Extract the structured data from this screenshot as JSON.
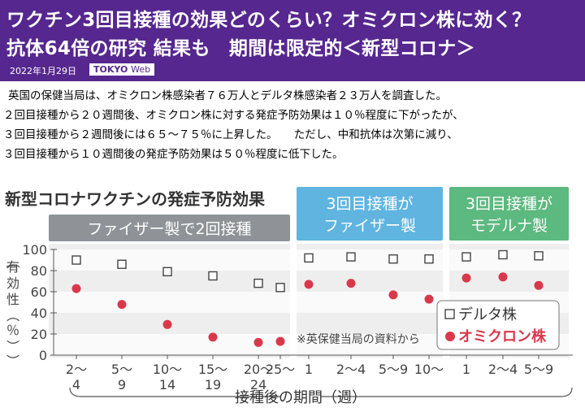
{
  "header": {
    "title_line1": "ワクチン3回目接種の効果どのくらい？オミクロン株に効く？",
    "title_line2": "抗体64倍の研究 結果も　期間は限定的＜新型コロナ＞",
    "date": "2022年1月29日",
    "brand": "TOKYO",
    "brand_suffix": "Web"
  },
  "article": {
    "lines": [
      "英国の保健当局は、オミクロン株感染者７６万人とデルタ株感染者２３万人を調査した。",
      "２回目接種から２０週間後、オミクロン株に対する発症予防効果は１０％程度に下がったが、",
      "３回目接種から２週間後には６５～７５％に上昇した。　　ただし、中和抗体は次第に減り、",
      "３回目接種から１０週間後の発症予防効果は５０％程度に低下した。"
    ]
  },
  "chart_data": {
    "type": "scatter",
    "title": "新型コロナワクチンの発症予防効果",
    "ylabel": "有効性（％）",
    "xlabel": "接種後の期間（週）",
    "ylim": [
      0,
      100
    ],
    "yticks": [
      0,
      20,
      40,
      60,
      80,
      100
    ],
    "source_note": "※英保健当局の資料から",
    "legend": {
      "delta": "デルタ株",
      "omicron": "オミクロン株",
      "placement": "bottom-right"
    },
    "colors": {
      "omicron": "#d9384b",
      "delta": "#444444",
      "panel1_header": "#8f9397",
      "panel2_header": "#5fb4e0",
      "panel3_header": "#5cb97f",
      "panel_bg": "#eeeeee",
      "axis_blue": "#3a7fc0"
    },
    "panels": [
      {
        "name": "ファイザー製で2回接種",
        "categories": [
          [
            "2～",
            "4"
          ],
          [
            "5～",
            "9"
          ],
          [
            "10～",
            "14"
          ],
          [
            "15～",
            "19"
          ],
          [
            "20～",
            "24"
          ],
          [
            "25～",
            ""
          ]
        ],
        "delta": [
          90,
          86,
          79,
          75,
          68,
          64
        ],
        "omicron": [
          63,
          48,
          29,
          17,
          12,
          13
        ]
      },
      {
        "name": "3回目接種がファイザー製",
        "name_lines": [
          "3回目接種が",
          "ファイザー製"
        ],
        "categories": [
          [
            "1",
            ""
          ],
          [
            "2～4",
            ""
          ],
          [
            "5～9",
            ""
          ],
          [
            "10～",
            ""
          ]
        ],
        "delta": [
          92,
          93,
          91,
          91
        ],
        "omicron": [
          67,
          68,
          57,
          53
        ]
      },
      {
        "name": "3回目接種がモデルナ製",
        "name_lines": [
          "3回目接種が",
          "モデルナ製"
        ],
        "categories": [
          [
            "1",
            ""
          ],
          [
            "2～4",
            ""
          ],
          [
            "5～9",
            ""
          ]
        ],
        "delta": [
          93,
          95,
          94
        ],
        "omicron": [
          73,
          74,
          66
        ]
      }
    ]
  }
}
